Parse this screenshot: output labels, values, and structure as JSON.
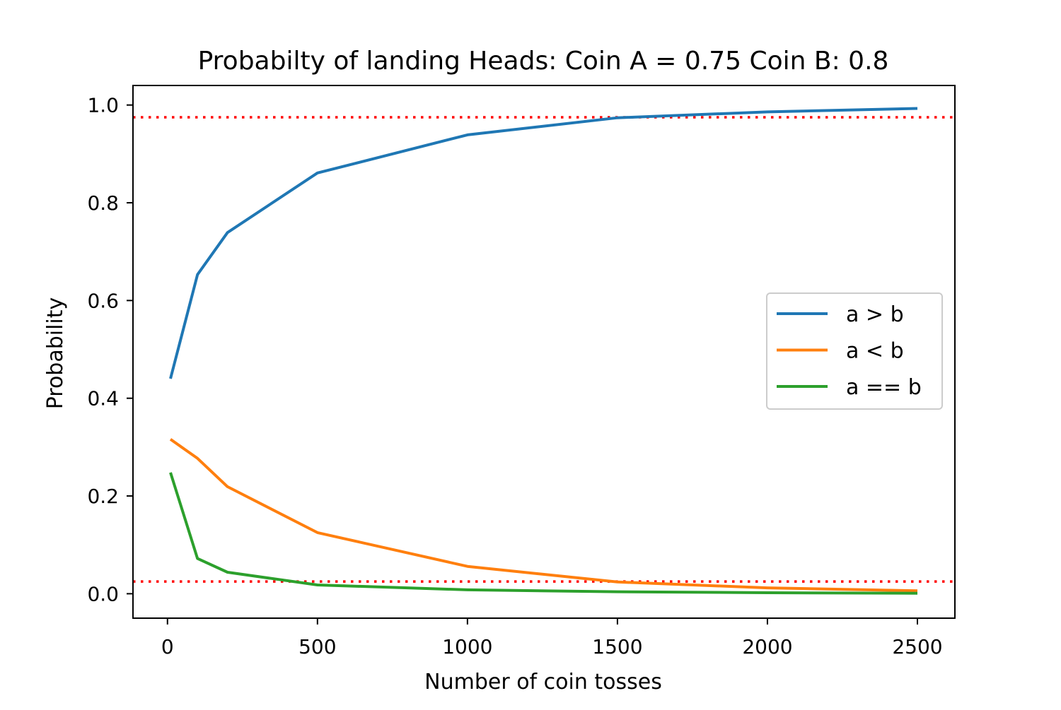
{
  "chart_data": {
    "type": "line",
    "title": "Probabilty of landing Heads: Coin A = 0.75 Coin B: 0.8",
    "xlabel": "Number of coin tosses",
    "ylabel": "Probability",
    "xlim": [
      -115,
      2625
    ],
    "ylim": [
      -0.05,
      1.04
    ],
    "xticks": [
      0,
      500,
      1000,
      1500,
      2000,
      2500
    ],
    "xtick_labels": [
      "0",
      "500",
      "1000",
      "1500",
      "2000",
      "2500"
    ],
    "yticks": [
      0.0,
      0.2,
      0.4,
      0.6,
      0.8,
      1.0
    ],
    "ytick_labels": [
      "0.0",
      "0.2",
      "0.4",
      "0.6",
      "0.8",
      "1.0"
    ],
    "grid": false,
    "legend_position": "center-right",
    "x": [
      10,
      100,
      200,
      500,
      1000,
      1500,
      2000,
      2500
    ],
    "series": [
      {
        "name": "a > b",
        "color": "#1f77b4",
        "values": [
          0.44,
          0.653,
          0.739,
          0.861,
          0.939,
          0.974,
          0.986,
          0.993
        ]
      },
      {
        "name": "a < b",
        "color": "#ff7f0e",
        "values": [
          0.316,
          0.277,
          0.219,
          0.125,
          0.056,
          0.024,
          0.012,
          0.006
        ]
      },
      {
        "name": "a == b",
        "color": "#2ca02c",
        "values": [
          0.248,
          0.072,
          0.044,
          0.018,
          0.008,
          0.004,
          0.002,
          0.001
        ]
      }
    ],
    "reference_lines": [
      {
        "y": 0.975,
        "color": "#ff0000",
        "style": "dotted"
      },
      {
        "y": 0.025,
        "color": "#ff0000",
        "style": "dotted"
      }
    ]
  }
}
